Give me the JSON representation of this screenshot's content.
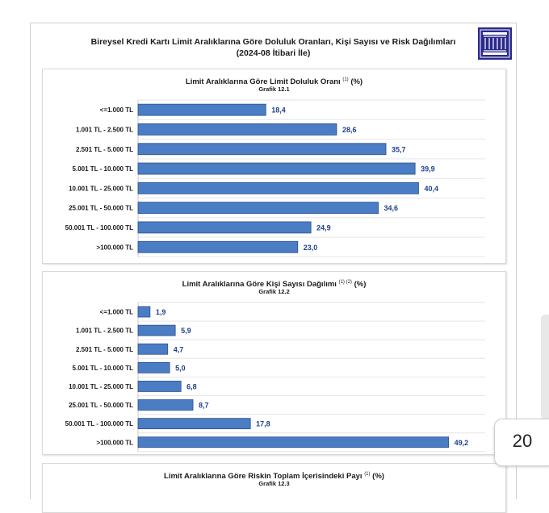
{
  "document": {
    "title_line1": "Bireysel Kredi Kartı Limit Aralıklarına Göre Doluluk Oranları, Kişi Sayısı ve Risk Dağılımları",
    "title_line2": "(2024-08 İtibari İle)"
  },
  "page_number": "20",
  "colors": {
    "bar": "#4a7dc4",
    "bar_edge": "#2a4f8f",
    "value_label": "#1f3f8f"
  },
  "chart_data": [
    {
      "type": "bar",
      "orientation": "horizontal",
      "title": "Limit Aralıklarına Göre Limit Doluluk Oranı",
      "title_note": "(1)",
      "unit": "(%)",
      "subtitle": "Grafik 12.1",
      "categories": [
        "<=1.000 TL",
        "1.001 TL - 2.500 TL",
        "2.501 TL - 5.000 TL",
        "5.001 TL - 10.000 TL",
        "10.001 TL - 25.000 TL",
        "25.001 TL - 50.000 TL",
        "50.001 TL - 100.000 TL",
        ">100.000 TL"
      ],
      "values": [
        18.4,
        28.6,
        35.7,
        39.9,
        40.4,
        34.6,
        24.9,
        23.0
      ],
      "value_labels": [
        "18,4",
        "28,6",
        "35,7",
        "39,9",
        "40,4",
        "34,6",
        "24,9",
        "23,0"
      ],
      "xlim": [
        0,
        50
      ],
      "grid": true
    },
    {
      "type": "bar",
      "orientation": "horizontal",
      "title": "Limit Aralıklarına Göre Kişi Sayısı Dağılımı",
      "title_note": "(1) (2)",
      "unit": "(%)",
      "subtitle": "Grafik 12.2",
      "categories": [
        "<=1.000 TL",
        "1.001 TL - 2.500 TL",
        "2.501 TL - 5.000 TL",
        "5.001 TL - 10.000 TL",
        "10.001 TL - 25.000 TL",
        "25.001 TL - 50.000 TL",
        "50.001 TL - 100.000 TL",
        ">100.000 TL"
      ],
      "values": [
        1.9,
        5.9,
        4.7,
        5.0,
        6.8,
        8.7,
        17.8,
        49.2
      ],
      "value_labels": [
        "1,9",
        "5,9",
        "4,7",
        "5,0",
        "6,8",
        "8,7",
        "17,8",
        "49,2"
      ],
      "xlim": [
        0,
        55
      ],
      "grid": true
    },
    {
      "type": "bar",
      "orientation": "horizontal",
      "title": "Limit Aralıklarına Göre Riskin Toplam İçerisindeki Payı",
      "title_note": "(1)",
      "unit": "(%)",
      "subtitle": "Grafik 12.3"
    }
  ]
}
